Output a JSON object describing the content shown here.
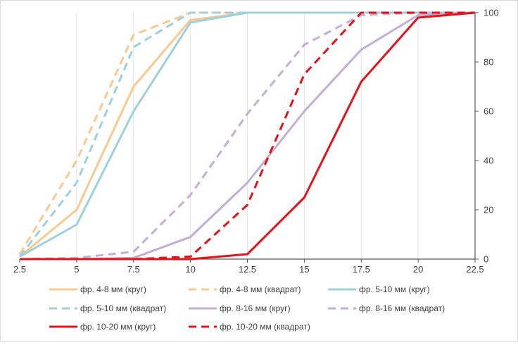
{
  "chart_data": {
    "type": "line",
    "title": "",
    "xlabel": "",
    "ylabel": "",
    "x": [
      2.5,
      5,
      7.5,
      10,
      12.5,
      15,
      17.5,
      20,
      22.5
    ],
    "x_tick_labels": [
      "2.5",
      "5",
      "7.5",
      "10",
      "12.5",
      "15",
      "17.5",
      "20",
      "22.5"
    ],
    "xlim": [
      2.5,
      22.5
    ],
    "ylim": [
      0,
      100
    ],
    "y_ticks": [
      0,
      20,
      40,
      60,
      80,
      100
    ],
    "y_tick_labels": [
      "0",
      "20",
      "40",
      "60",
      "80",
      "100"
    ],
    "y_axis_position": "right",
    "grid": "vertical",
    "legend": "bottom",
    "series": [
      {
        "name": "фр.  4-8 мм (круг)",
        "color": "#f9c98f",
        "dash": "solid",
        "values": [
          1,
          20,
          70,
          97,
          100,
          100,
          100,
          100,
          100
        ]
      },
      {
        "name": "фр.  4-8 мм (квадрат)",
        "color": "#f9c98f",
        "dash": "dashed",
        "values": [
          2,
          40,
          91,
          100,
          100,
          100,
          100,
          100,
          100
        ]
      },
      {
        "name": "фр.  5-10 мм (круг)",
        "color": "#9fcfdf",
        "dash": "solid",
        "values": [
          1,
          14,
          60,
          96,
          100,
          100,
          100,
          100,
          100
        ]
      },
      {
        "name": "фр.  5-10 мм (квадрат)",
        "color": "#9fcfdf",
        "dash": "dashed",
        "values": [
          1,
          31,
          86,
          100,
          100,
          100,
          100,
          100,
          100
        ]
      },
      {
        "name": "фр.  8-16 мм (круг)",
        "color": "#c3aed6",
        "dash": "solid",
        "values": [
          0,
          0,
          0.5,
          9,
          31,
          60,
          85,
          99,
          100
        ]
      },
      {
        "name": "фр.  8-16 мм (квадрат)",
        "color": "#c3aed6",
        "dash": "dashed",
        "values": [
          0,
          0.5,
          3,
          26,
          59,
          87,
          99,
          100,
          100
        ]
      },
      {
        "name": "фр.  10-20 мм (круг)",
        "color": "#e3121b",
        "dash": "solid",
        "values": [
          0,
          0,
          0,
          0,
          2,
          25,
          72,
          98,
          100
        ]
      },
      {
        "name": "фр.  10-20 мм (квадрат)",
        "color": "#e3121b",
        "dash": "dashed",
        "values": [
          0,
          0,
          0,
          1,
          22,
          75,
          100,
          100,
          100
        ]
      }
    ]
  }
}
